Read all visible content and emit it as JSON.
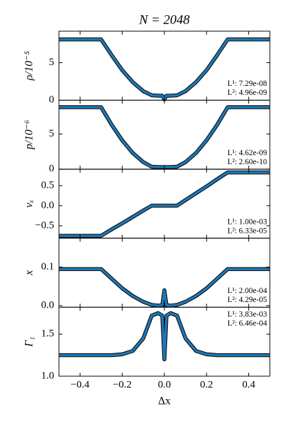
{
  "chart_data": [
    {
      "type": "line",
      "title": "N = 2048",
      "ylabel": "ρ/10⁻⁵",
      "x": [
        -0.5,
        -0.4,
        -0.3,
        -0.25,
        -0.2,
        -0.15,
        -0.1,
        -0.06,
        -0.03,
        -0.01,
        0,
        0.01,
        0.03,
        0.06,
        0.1,
        0.15,
        0.2,
        0.25,
        0.3,
        0.4,
        0.5
      ],
      "series": [
        {
          "color": "#1f77b4",
          "values": [
            8.1,
            8.1,
            8.1,
            6.0,
            4.0,
            2.4,
            1.2,
            0.65,
            0.6,
            0.6,
            0.1,
            0.6,
            0.6,
            0.65,
            1.2,
            2.4,
            4.0,
            6.0,
            8.1,
            8.1,
            8.1
          ]
        }
      ],
      "annotations": [
        "L¹: 7.29e-08",
        "L²: 4.96e-09"
      ],
      "annotation_corner": "lower right",
      "xlim": [
        -0.5,
        0.5
      ],
      "ylim": [
        0,
        9.2
      ],
      "yticks": [
        0,
        5
      ]
    },
    {
      "type": "line",
      "ylabel": "p/10⁻⁶",
      "x": [
        -0.5,
        -0.4,
        -0.3,
        -0.25,
        -0.2,
        -0.15,
        -0.1,
        -0.06,
        -0.03,
        -0.01,
        0,
        0.01,
        0.03,
        0.06,
        0.1,
        0.15,
        0.2,
        0.25,
        0.3,
        0.4,
        0.5
      ],
      "series": [
        {
          "color": "#1f77b4",
          "values": [
            8.8,
            8.8,
            8.8,
            6.3,
            4.1,
            2.3,
            1.0,
            0.35,
            0.3,
            0.3,
            0.3,
            0.3,
            0.3,
            0.35,
            1.0,
            2.3,
            4.1,
            6.3,
            8.8,
            8.8,
            8.8
          ]
        }
      ],
      "annotations": [
        "L¹: 4.62e-09",
        "L²: 2.60e-10"
      ],
      "annotation_corner": "lower right",
      "xlim": [
        -0.5,
        0.5
      ],
      "ylim": [
        0,
        9.8
      ],
      "yticks": [
        0,
        5
      ]
    },
    {
      "type": "line",
      "ylabel": "vₓ",
      "x": [
        -0.5,
        -0.4,
        -0.3,
        -0.25,
        -0.2,
        -0.15,
        -0.1,
        -0.06,
        -0.03,
        -0.01,
        0,
        0.01,
        0.03,
        0.06,
        0.1,
        0.15,
        0.2,
        0.25,
        0.3,
        0.4,
        0.5
      ],
      "series": [
        {
          "color": "#1f77b4",
          "values": [
            -0.75,
            -0.75,
            -0.75,
            -0.59,
            -0.44,
            -0.28,
            -0.12,
            0,
            0,
            0,
            0,
            0,
            0,
            0,
            0.14,
            0.31,
            0.48,
            0.66,
            0.83,
            0.83,
            0.83
          ]
        }
      ],
      "annotations": [
        "L¹: 1.00e-03",
        "L²: 6.33e-05"
      ],
      "annotation_corner": "lower right",
      "xlim": [
        -0.5,
        0.5
      ],
      "ylim": [
        -0.81,
        0.91
      ],
      "yticks": [
        {
          "value": -0.5,
          "label": "−0.5"
        },
        {
          "value": 0,
          "label": "0.0"
        },
        0.5
      ]
    },
    {
      "type": "line",
      "ylabel": "x",
      "x": [
        -0.5,
        -0.4,
        -0.3,
        -0.25,
        -0.2,
        -0.15,
        -0.1,
        -0.06,
        -0.03,
        -0.01,
        0,
        0.01,
        0.03,
        0.06,
        0.1,
        0.15,
        0.2,
        0.25,
        0.3,
        0.4,
        0.5
      ],
      "series": [
        {
          "color": "#1f77b4",
          "values": [
            0.095,
            0.095,
            0.095,
            0.07,
            0.045,
            0.025,
            0.01,
            0.002,
            0,
            0.001,
            0.04,
            0.001,
            0,
            0.002,
            0.01,
            0.025,
            0.045,
            0.07,
            0.095,
            0.095,
            0.095
          ]
        }
      ],
      "annotations": [
        "L¹: 2.00e-04",
        "L²: 4.29e-05"
      ],
      "annotation_corner": "lower right",
      "xlim": [
        -0.5,
        0.5
      ],
      "ylim": [
        -0.004,
        0.175
      ],
      "yticks": [
        {
          "value": 0,
          "label": "0.0"
        },
        0.1
      ]
    },
    {
      "type": "line",
      "ylabel": "Γ₁",
      "xlabel": "Δx",
      "x": [
        -0.5,
        -0.4,
        -0.3,
        -0.25,
        -0.2,
        -0.15,
        -0.1,
        -0.06,
        -0.03,
        -0.01,
        0,
        0.01,
        0.03,
        0.06,
        0.1,
        0.15,
        0.2,
        0.25,
        0.3,
        0.4,
        0.5
      ],
      "series": [
        {
          "color": "#1f77b4",
          "values": [
            1.25,
            1.25,
            1.25,
            1.25,
            1.26,
            1.3,
            1.45,
            1.72,
            1.75,
            1.72,
            1.2,
            1.72,
            1.75,
            1.72,
            1.45,
            1.3,
            1.26,
            1.25,
            1.25,
            1.25,
            1.25
          ]
        }
      ],
      "annotations": [
        "L¹: 3.83e-03",
        "L²: 6.46e-04"
      ],
      "annotation_corner": "upper right",
      "xlim": [
        -0.5,
        0.5
      ],
      "ylim": [
        1.0,
        1.82
      ],
      "xticks": [
        {
          "value": -0.4,
          "label": "−0.4"
        },
        {
          "value": -0.2,
          "label": "−0.2"
        },
        {
          "value": 0,
          "label": "0.0"
        },
        0.2,
        0.4
      ],
      "yticks": [
        {
          "value": 1.0,
          "label": "1.0"
        },
        1.5
      ]
    }
  ]
}
